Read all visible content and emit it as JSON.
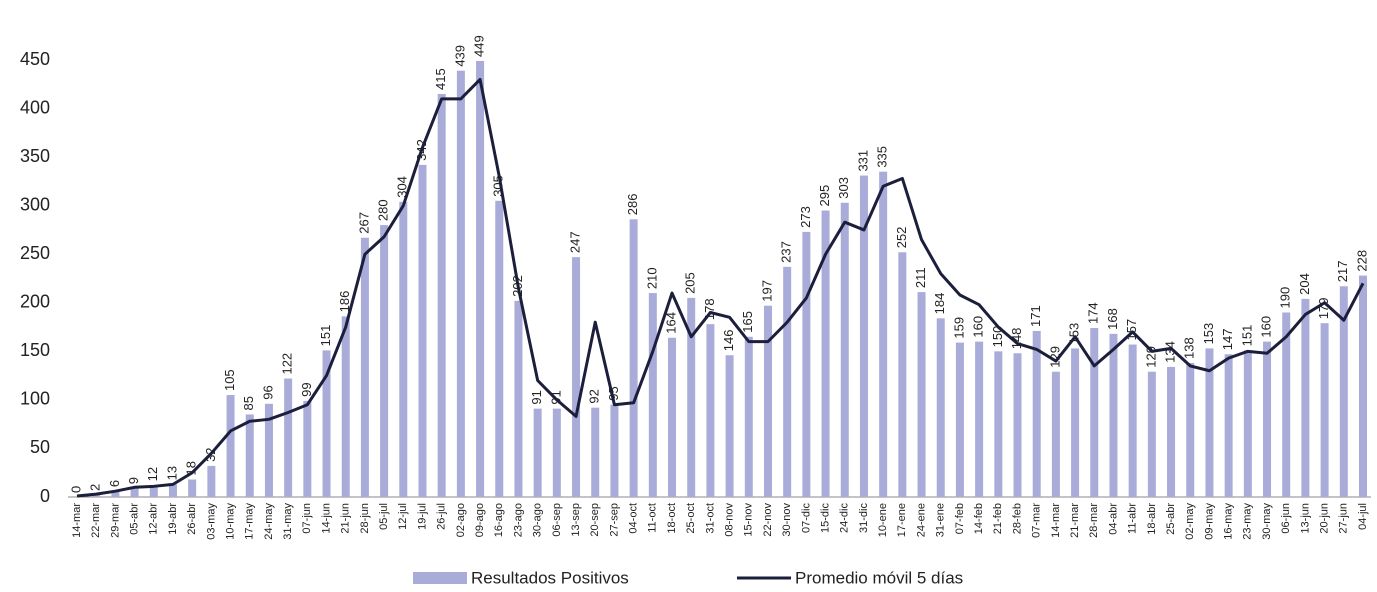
{
  "chart_data": {
    "type": "bar_line",
    "categories": [
      "14-mar",
      "22-mar",
      "29-mar",
      "05-abr",
      "12-abr",
      "19-abr",
      "26-abr",
      "03-may",
      "10-may",
      "17-may",
      "24-may",
      "31-may",
      "07-jun",
      "14-jun",
      "21-jun",
      "28-jun",
      "05-jul",
      "12-jul",
      "19-jul",
      "26-jul",
      "02-ago",
      "09-ago",
      "16-ago",
      "23-ago",
      "30-ago",
      "06-sep",
      "13-sep",
      "20-sep",
      "27-sep",
      "04-oct",
      "11-oct",
      "18-oct",
      "25-oct",
      "31-oct",
      "08-nov",
      "15-nov",
      "22-nov",
      "30-nov",
      "07-dic",
      "15-dic",
      "24-dic",
      "31-dic",
      "10-ene",
      "17-ene",
      "24-ene",
      "31-ene",
      "07-feb",
      "14-feb",
      "21-feb",
      "28-feb",
      "07-mar",
      "14-mar",
      "21-mar",
      "28-mar",
      "04-abr",
      "11-abr",
      "18-abr",
      "25-abr",
      "02-may",
      "09-may",
      "16-may",
      "23-may",
      "30-may",
      "06-jun",
      "13-jun",
      "20-jun",
      "27-jun",
      "04-jul"
    ],
    "series": [
      {
        "name": "Resultados Positivos",
        "type": "bar",
        "color": "#a9acd9",
        "values": [
          0,
          2,
          6,
          9,
          12,
          13,
          18,
          32,
          105,
          85,
          96,
          122,
          99,
          151,
          186,
          267,
          280,
          304,
          342,
          415,
          439,
          449,
          305,
          202,
          91,
          91,
          247,
          92,
          95,
          286,
          210,
          164,
          205,
          178,
          146,
          165,
          197,
          237,
          273,
          295,
          303,
          331,
          335,
          252,
          211,
          184,
          159,
          160,
          150,
          148,
          171,
          129,
          153,
          174,
          168,
          157,
          129,
          134,
          138,
          153,
          147,
          151,
          160,
          190,
          204,
          179,
          217,
          228
        ]
      },
      {
        "name": "Promedio móvil 5 días",
        "type": "line",
        "color": "#1b1f3b",
        "values": [
          1,
          3,
          6,
          10,
          11,
          13,
          25,
          45,
          68,
          78,
          80,
          87,
          95,
          125,
          175,
          250,
          268,
          300,
          360,
          410,
          410,
          430,
          330,
          215,
          120,
          100,
          83,
          180,
          95,
          97,
          150,
          210,
          165,
          190,
          185,
          160,
          160,
          180,
          205,
          250,
          283,
          275,
          320,
          328,
          265,
          230,
          208,
          198,
          175,
          158,
          152,
          140,
          165,
          135,
          152,
          170,
          150,
          153,
          135,
          130,
          143,
          150,
          148,
          165,
          188,
          200,
          182,
          220
        ]
      }
    ],
    "ylim": [
      0,
      450
    ],
    "yticks": [
      0,
      50,
      100,
      150,
      200,
      250,
      300,
      350,
      400,
      450
    ],
    "grid": false,
    "legend": "bottom"
  }
}
